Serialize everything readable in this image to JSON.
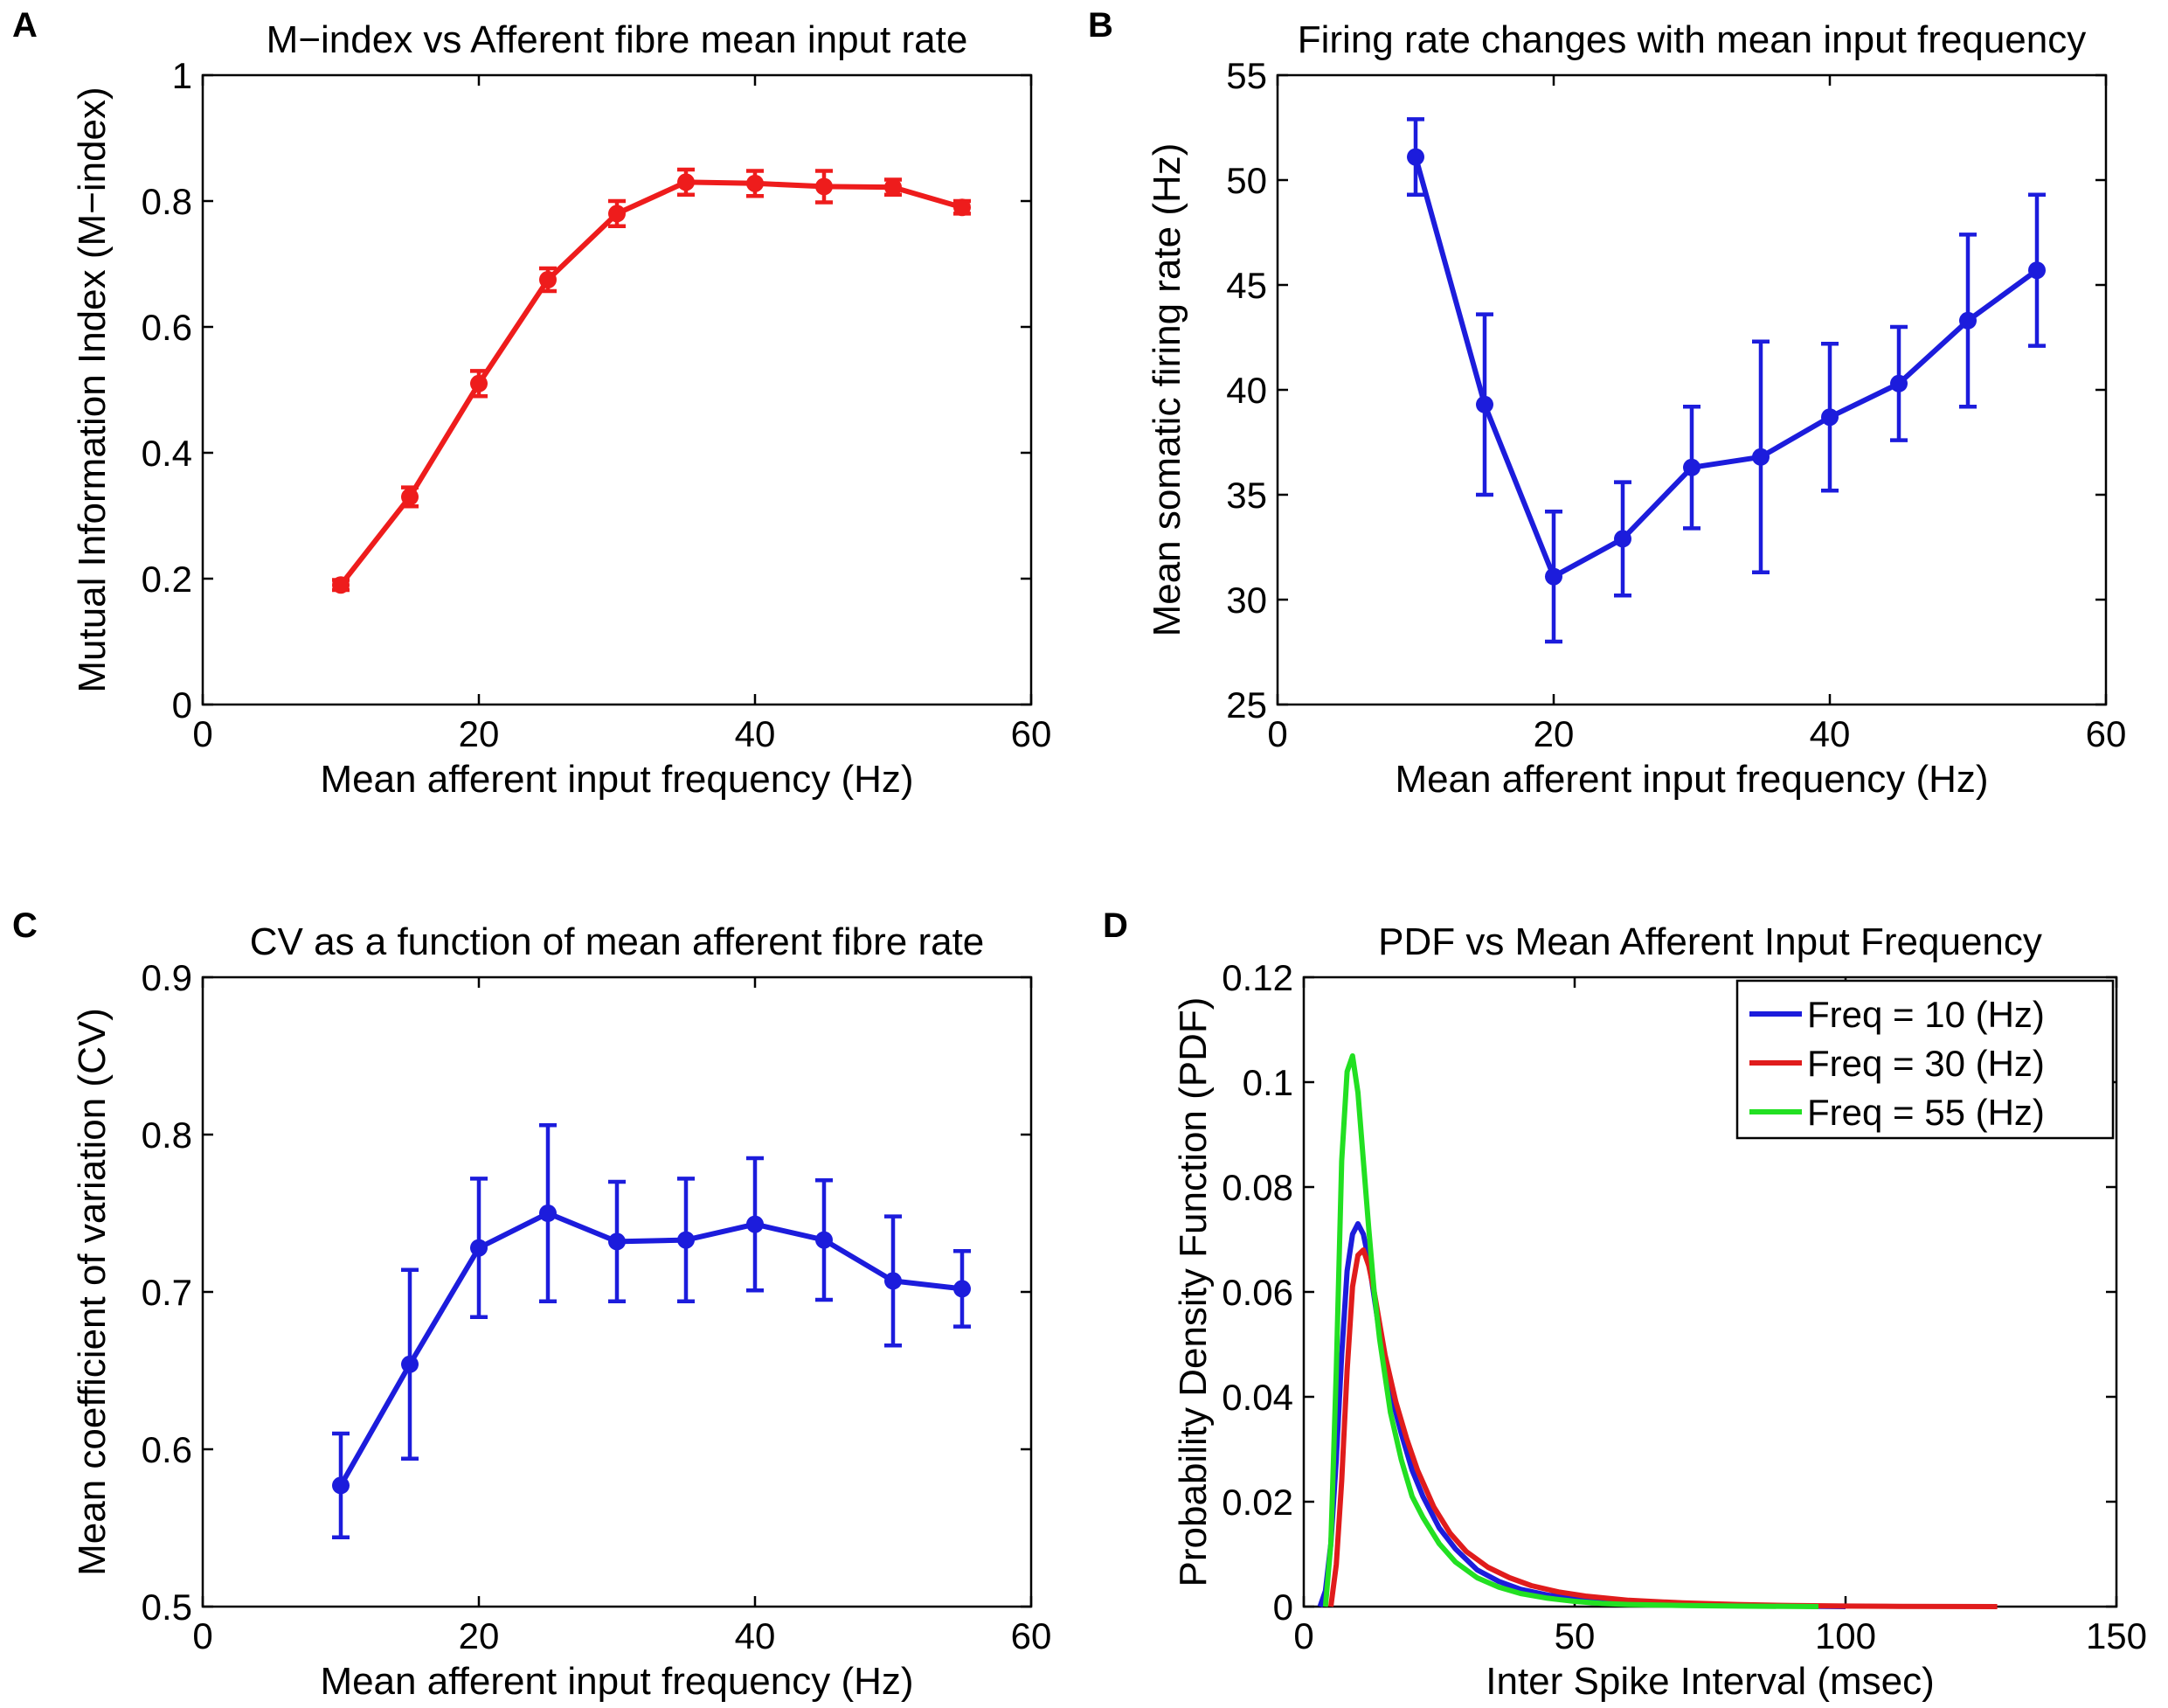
{
  "charts": [
    {
      "panel": "A",
      "type": "line",
      "title": "M−index vs Afferent fibre mean input rate",
      "xlabel": "Mean afferent input frequency (Hz)",
      "ylabel": "Mutual Information Index (M−index)",
      "xlim": [
        0,
        60
      ],
      "ylim": [
        0,
        1
      ],
      "xticks": [
        0,
        20,
        40,
        60
      ],
      "yticks": [
        0,
        0.2,
        0.4,
        0.6,
        0.8,
        1
      ],
      "ytick_labels": [
        "0",
        "0.2",
        "0.4",
        "0.6",
        "0.8",
        "1"
      ],
      "color": "#ee1c1c",
      "x": [
        10,
        15,
        20,
        25,
        30,
        35,
        40,
        45,
        50,
        55
      ],
      "y": [
        0.19,
        0.33,
        0.51,
        0.675,
        0.78,
        0.83,
        0.828,
        0.823,
        0.822,
        0.79
      ],
      "err": [
        0.008,
        0.015,
        0.02,
        0.018,
        0.02,
        0.02,
        0.02,
        0.025,
        0.012,
        0.01
      ]
    },
    {
      "panel": "B",
      "type": "line",
      "title": "Firing rate changes with mean input frequency",
      "xlabel": "Mean afferent input frequency (Hz)",
      "ylabel": "Mean somatic firing rate (Hz)",
      "xlim": [
        0,
        60
      ],
      "ylim": [
        25,
        55
      ],
      "xticks": [
        0,
        20,
        40,
        60
      ],
      "yticks": [
        25,
        30,
        35,
        40,
        45,
        50,
        55
      ],
      "ytick_labels": [
        "25",
        "30",
        "35",
        "40",
        "45",
        "50",
        "55"
      ],
      "color": "#1c1cdc",
      "x": [
        10,
        15,
        20,
        25,
        30,
        35,
        40,
        45,
        50,
        55
      ],
      "y": [
        51.1,
        39.3,
        31.1,
        32.9,
        36.3,
        36.8,
        38.7,
        40.3,
        43.3,
        45.7
      ],
      "err": [
        1.8,
        4.3,
        3.1,
        2.7,
        2.9,
        5.5,
        3.5,
        2.7,
        4.1,
        3.6
      ]
    },
    {
      "panel": "C",
      "type": "line",
      "title": "CV as a function of mean afferent fibre rate",
      "xlabel": "Mean afferent input frequency (Hz)",
      "ylabel": "Mean coefficient of variation (CV)",
      "xlim": [
        0,
        60
      ],
      "ylim": [
        0.5,
        0.9
      ],
      "xticks": [
        0,
        20,
        40,
        60
      ],
      "yticks": [
        0.5,
        0.6,
        0.7,
        0.8,
        0.9
      ],
      "ytick_labels": [
        "0.5",
        "0.6",
        "0.7",
        "0.8",
        "0.9"
      ],
      "color": "#1c1cdc",
      "x": [
        10,
        15,
        20,
        25,
        30,
        35,
        40,
        45,
        50,
        55
      ],
      "y": [
        0.577,
        0.654,
        0.728,
        0.75,
        0.732,
        0.733,
        0.743,
        0.733,
        0.707,
        0.702
      ],
      "err": [
        0.033,
        0.06,
        0.044,
        0.056,
        0.038,
        0.039,
        0.042,
        0.038,
        0.041,
        0.024
      ]
    },
    {
      "panel": "D",
      "type": "line",
      "title": "PDF vs Mean Afferent Input Frequency",
      "xlabel": "Inter Spike Interval (msec)",
      "ylabel": "Probability Density Function (PDF)",
      "xlim": [
        0,
        150
      ],
      "ylim": [
        0,
        0.12
      ],
      "xticks": [
        0,
        50,
        100,
        150
      ],
      "yticks": [
        0,
        0.02,
        0.04,
        0.06,
        0.08,
        0.1,
        0.12
      ],
      "ytick_labels": [
        "0",
        "0.02",
        "0.04",
        "0.06",
        "0.08",
        "0.1",
        "0.12"
      ],
      "legend_position": "top-right",
      "series": [
        {
          "name": "Freq = 10 (Hz)",
          "color": "#1c1cdc",
          "x": [
            3,
            4,
            5,
            6,
            7,
            8,
            9,
            10,
            11,
            12,
            13,
            14,
            16,
            18,
            20,
            22,
            25,
            28,
            32,
            36,
            40,
            45,
            50,
            55,
            60,
            70,
            80,
            90,
            100
          ],
          "y": [
            0,
            0.003,
            0.012,
            0.028,
            0.048,
            0.064,
            0.071,
            0.073,
            0.071,
            0.066,
            0.059,
            0.052,
            0.041,
            0.033,
            0.026,
            0.021,
            0.015,
            0.011,
            0.007,
            0.0048,
            0.0033,
            0.0022,
            0.0015,
            0.001,
            0.0007,
            0.0004,
            0.0002,
            0.0001,
            0
          ]
        },
        {
          "name": "Freq = 30 (Hz)",
          "color": "#e01c1c",
          "x": [
            5,
            6,
            7,
            8,
            9,
            10,
            11,
            12,
            13,
            14,
            15,
            17,
            19,
            21,
            24,
            27,
            30,
            34,
            38,
            42,
            47,
            52,
            60,
            70,
            80,
            90,
            100,
            110,
            120,
            128
          ],
          "y": [
            0,
            0.008,
            0.024,
            0.045,
            0.061,
            0.067,
            0.068,
            0.065,
            0.06,
            0.054,
            0.048,
            0.039,
            0.032,
            0.026,
            0.019,
            0.014,
            0.0105,
            0.0075,
            0.0055,
            0.004,
            0.0028,
            0.002,
            0.0012,
            0.0007,
            0.0004,
            0.0002,
            0.0001,
            5e-05,
            2e-05,
            0
          ]
        },
        {
          "name": "Freq = 55 (Hz)",
          "color": "#22e022",
          "x": [
            4,
            5,
            6,
            7,
            8,
            9,
            10,
            11,
            12,
            13,
            14,
            16,
            18,
            20,
            22,
            25,
            28,
            32,
            36,
            40,
            45,
            50,
            55,
            60,
            70,
            80,
            90,
            95
          ],
          "y": [
            0,
            0.012,
            0.045,
            0.085,
            0.102,
            0.105,
            0.098,
            0.085,
            0.072,
            0.06,
            0.051,
            0.037,
            0.028,
            0.021,
            0.017,
            0.012,
            0.0085,
            0.0055,
            0.0037,
            0.0025,
            0.0016,
            0.001,
            0.0006,
            0.0004,
            0.0002,
            0.0001,
            3e-05,
            0
          ]
        }
      ]
    }
  ]
}
